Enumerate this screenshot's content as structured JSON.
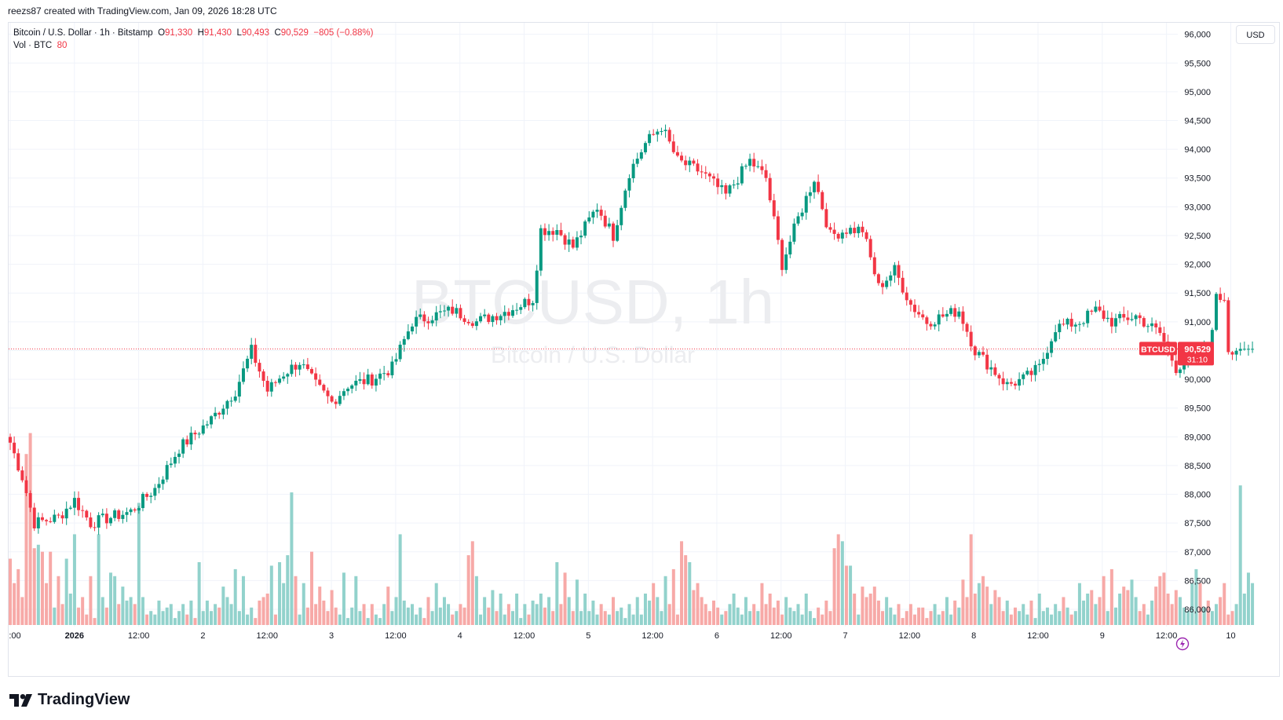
{
  "caption": "reezs87 created with TradingView.com, Jan 09, 2026 18:28 UTC",
  "header": {
    "symbol": "Bitcoin / U.S. Dollar · 1h · Bitstamp",
    "open_label": "O",
    "open": "91,330",
    "high_label": "H",
    "high": "91,430",
    "low_label": "L",
    "low": "90,493",
    "close_label": "C",
    "close": "90,529",
    "change": "−805 (−0.88%)",
    "vol_label": "Vol · BTC",
    "vol_value": "80"
  },
  "currency_button": "USD",
  "watermark": {
    "title": "BTCUSD, 1h",
    "subtitle": "Bitcoin / U.S. Dollar"
  },
  "price_tag": {
    "ticker": "BTCUSD",
    "price": "90,529",
    "countdown": "31:10"
  },
  "brand": {
    "name": "TradingView",
    "icon": "tradingview-logo-icon"
  },
  "colors": {
    "up": "#089981",
    "down": "#f23645",
    "up_vol": "#92d2cc",
    "down_vol": "#f7a9a7",
    "grid": "#f0f3fa"
  },
  "chart_data": {
    "type": "candlestick",
    "timeframe": "1h",
    "ylim": [
      85700,
      96200
    ],
    "y_ticks": [
      86000,
      86500,
      87000,
      87500,
      88000,
      88500,
      89000,
      89500,
      90000,
      90500,
      91000,
      91500,
      92000,
      92500,
      93000,
      93500,
      94000,
      94500,
      95000,
      95500,
      96000
    ],
    "y_tick_labels": [
      "86,000",
      "86,500",
      "87,000",
      "87,500",
      "88,000",
      "88,500",
      "89,000",
      "89,500",
      "90,000",
      "90,500",
      "91,000",
      "91,500",
      "92,000",
      "92,500",
      "93,000",
      "93,500",
      "94,000",
      "94,500",
      "95,000",
      "95,500",
      "96,000"
    ],
    "x_ticks": [
      {
        "label": ":00",
        "pos": 0.0
      },
      {
        "label": "2026",
        "pos": 0.05,
        "bold": true
      },
      {
        "label": "12:00",
        "pos": 0.1
      },
      {
        "label": "2",
        "pos": 0.15
      },
      {
        "label": "12:00",
        "pos": 0.2
      },
      {
        "label": "3",
        "pos": 0.25
      },
      {
        "label": "12:00",
        "pos": 0.3
      },
      {
        "label": "4",
        "pos": 0.35
      },
      {
        "label": "12:00",
        "pos": 0.4
      },
      {
        "label": "5",
        "pos": 0.45
      },
      {
        "label": "12:00",
        "pos": 0.5
      },
      {
        "label": "6",
        "pos": 0.55
      },
      {
        "label": "12:00",
        "pos": 0.6
      },
      {
        "label": "7",
        "pos": 0.65
      },
      {
        "label": "12:00",
        "pos": 0.7
      },
      {
        "label": "8",
        "pos": 0.75
      },
      {
        "label": "12:00",
        "pos": 0.8
      },
      {
        "label": "9",
        "pos": 0.85
      },
      {
        "label": "12:00",
        "pos": 0.9
      },
      {
        "label": "10",
        "pos": 0.95
      }
    ],
    "last_price": 90529,
    "keypoints": [
      [
        0,
        88900
      ],
      [
        3,
        88300
      ],
      [
        6,
        87500
      ],
      [
        12,
        87600
      ],
      [
        16,
        87900
      ],
      [
        20,
        87500
      ],
      [
        30,
        87700
      ],
      [
        36,
        88100
      ],
      [
        42,
        88800
      ],
      [
        50,
        89300
      ],
      [
        56,
        89800
      ],
      [
        60,
        90500
      ],
      [
        64,
        89800
      ],
      [
        68,
        90100
      ],
      [
        72,
        90300
      ],
      [
        76,
        89900
      ],
      [
        80,
        89600
      ],
      [
        84,
        89900
      ],
      [
        90,
        90000
      ],
      [
        95,
        90200
      ],
      [
        100,
        91000
      ],
      [
        110,
        91200
      ],
      [
        116,
        91000
      ],
      [
        124,
        91200
      ],
      [
        130,
        91400
      ],
      [
        132,
        92600
      ],
      [
        136,
        92600
      ],
      [
        140,
        92300
      ],
      [
        146,
        93000
      ],
      [
        150,
        92500
      ],
      [
        154,
        93600
      ],
      [
        158,
        94100
      ],
      [
        162,
        94400
      ],
      [
        166,
        93800
      ],
      [
        172,
        93600
      ],
      [
        178,
        93200
      ],
      [
        184,
        93800
      ],
      [
        188,
        93500
      ],
      [
        192,
        92000
      ],
      [
        196,
        92800
      ],
      [
        200,
        93500
      ],
      [
        204,
        92500
      ],
      [
        208,
        92600
      ],
      [
        212,
        92600
      ],
      [
        216,
        91600
      ],
      [
        220,
        91900
      ],
      [
        224,
        91300
      ],
      [
        228,
        91000
      ],
      [
        236,
        91200
      ],
      [
        240,
        90500
      ],
      [
        244,
        90200
      ],
      [
        248,
        89900
      ],
      [
        252,
        90000
      ],
      [
        256,
        90200
      ],
      [
        260,
        90900
      ],
      [
        266,
        91000
      ],
      [
        270,
        91200
      ],
      [
        274,
        91000
      ],
      [
        280,
        91100
      ],
      [
        286,
        90800
      ],
      [
        290,
        90200
      ],
      [
        294,
        90400
      ],
      [
        298,
        90500
      ],
      [
        300,
        91400
      ],
      [
        302,
        91430
      ],
      [
        303,
        90529
      ]
    ],
    "volumes": [
      19,
      12,
      16,
      8,
      49,
      55,
      22,
      23,
      21,
      12,
      21,
      5,
      14,
      6,
      19,
      9,
      26,
      5,
      8,
      3,
      14,
      2,
      26,
      8,
      5,
      15,
      14,
      6,
      11,
      7,
      8,
      6,
      35,
      8,
      3,
      4,
      3,
      7,
      4,
      5,
      6,
      2,
      4,
      6,
      3,
      7,
      2,
      18,
      4,
      7,
      4,
      6,
      5,
      11,
      8,
      6,
      16,
      4,
      14,
      3,
      5,
      2,
      7,
      8,
      9,
      17,
      3,
      18,
      12,
      20,
      38,
      14,
      3,
      12,
      5,
      21,
      6,
      11,
      7,
      4,
      10,
      5,
      3,
      15,
      2,
      5,
      14,
      4,
      6,
      2,
      6,
      3,
      2,
      6,
      11,
      4,
      8,
      26,
      7,
      5,
      6,
      3,
      5,
      2,
      8,
      4,
      12,
      5,
      8,
      6,
      3,
      4,
      6,
      5,
      20,
      24,
      14,
      3,
      8,
      5,
      10,
      4,
      9,
      3,
      6,
      4,
      9,
      2,
      6,
      3,
      7,
      6,
      9,
      5,
      8,
      4,
      18,
      6,
      15,
      8,
      4,
      13,
      4,
      9,
      4,
      7,
      3,
      6,
      4,
      3,
      8,
      4,
      5,
      2,
      6,
      3,
      8,
      3,
      9,
      7,
      12,
      8,
      4,
      14,
      6,
      16,
      3,
      24,
      20,
      18,
      10,
      12,
      8,
      6,
      4,
      7,
      5,
      3,
      4,
      6,
      9,
      5,
      3,
      8,
      4,
      6,
      4,
      12,
      6,
      9,
      5,
      7,
      3,
      8,
      5,
      4,
      6,
      3,
      9,
      4,
      2,
      5,
      3,
      7,
      4,
      22,
      26,
      24,
      17,
      17,
      9,
      3,
      11,
      8,
      9,
      11,
      7,
      4,
      8,
      5,
      3,
      6,
      2,
      4,
      6,
      3,
      5,
      5,
      2,
      4,
      6,
      3,
      4,
      8,
      3,
      7,
      5,
      13,
      8,
      26,
      9,
      12,
      14,
      11,
      6,
      10,
      8,
      4,
      7,
      3,
      5,
      4,
      6,
      3,
      7,
      2,
      9,
      4,
      5,
      3,
      6,
      4,
      8,
      5,
      3,
      4,
      12,
      7,
      9,
      10,
      6,
      8,
      14,
      4,
      16,
      5,
      9,
      11,
      10,
      13,
      8,
      4,
      6,
      3,
      7,
      11,
      14,
      15,
      9,
      6,
      10,
      8,
      5,
      4,
      12,
      16,
      12,
      5,
      7,
      4,
      6,
      8,
      12,
      3,
      4,
      6,
      40,
      9,
      15,
      12
    ]
  }
}
